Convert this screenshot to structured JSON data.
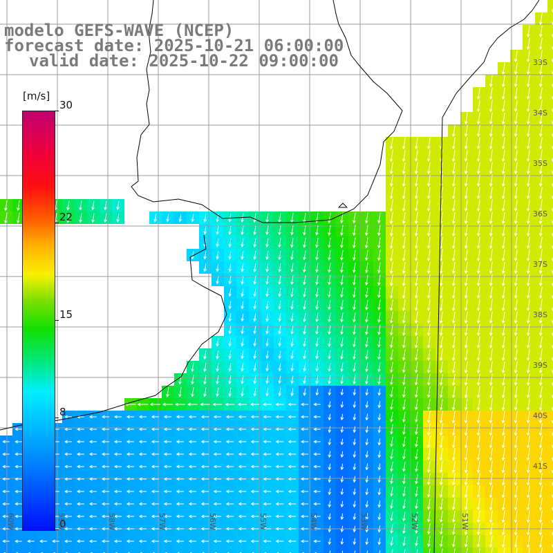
{
  "title": {
    "line1": "modelo GEFS-WAVE (NCEP)",
    "line2": "forecast date: 2025-10-21 06:00:00",
    "line3": "valid date: 2025-10-22 09:00:00"
  },
  "colorbar": {
    "unit": "[m/s]",
    "ticks": [
      {
        "label": "30",
        "value": 30
      },
      {
        "label": "22",
        "value": 22
      },
      {
        "label": "15",
        "value": 15
      },
      {
        "label": "8",
        "value": 8
      },
      {
        "label": "0",
        "value": 0
      }
    ],
    "min": 0,
    "max": 30
  },
  "lat_labels": [
    "33S",
    "34S",
    "35S",
    "36S",
    "37S",
    "38S",
    "39S",
    "40S",
    "41S"
  ],
  "lon_labels": [
    "60W",
    "59W",
    "58W",
    "57W",
    "56W",
    "55W",
    "54W",
    "53W",
    "52W",
    "51W"
  ],
  "colors": {
    "land": "#ffffff",
    "coastline": "#000000",
    "grid": "#9a9a9a",
    "arrow": "#ffffff",
    "title": "#7a7a7a"
  }
}
